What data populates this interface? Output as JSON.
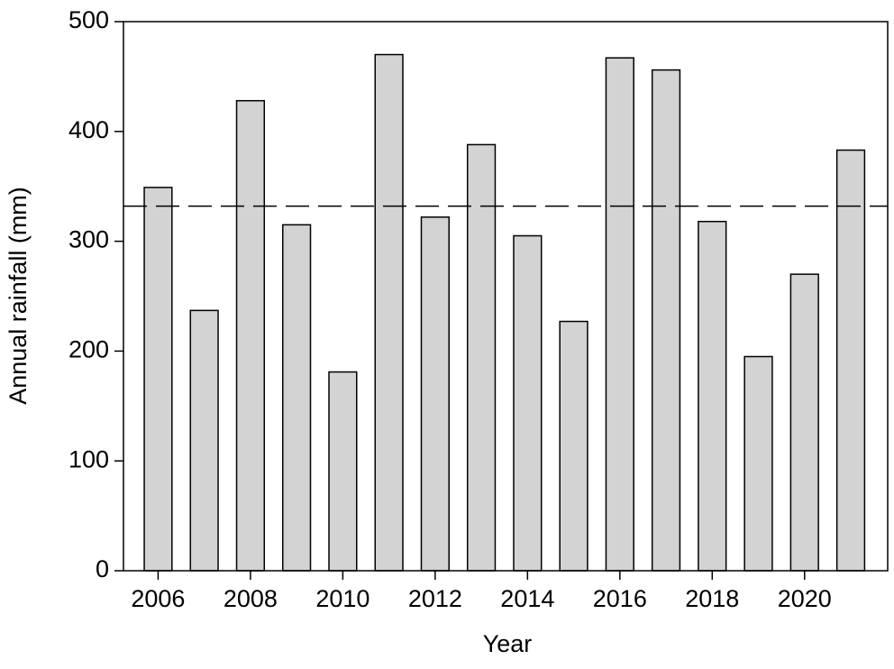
{
  "chart_data": {
    "type": "bar",
    "x_label": "Year",
    "y_label": "Annual rainfall (mm)",
    "x": [
      2006,
      2007,
      2008,
      2009,
      2010,
      2011,
      2012,
      2013,
      2014,
      2015,
      2016,
      2017,
      2018,
      2019,
      2020,
      2021
    ],
    "values": [
      349,
      237,
      428,
      315,
      181,
      470,
      322,
      388,
      305,
      227,
      467,
      456,
      318,
      195,
      270,
      383
    ],
    "color": "#d3d3d3",
    "bar_width": 0.6,
    "hline": 332,
    "hline_dashed": true,
    "xlim": [
      2005.25,
      2021.8
    ],
    "xticks": [
      2006,
      2008,
      2010,
      2012,
      2014,
      2016,
      2018,
      2020
    ],
    "ylim": [
      0,
      500
    ],
    "yticks": [
      0,
      100,
      200,
      300,
      400,
      500
    ],
    "grid": false
  }
}
